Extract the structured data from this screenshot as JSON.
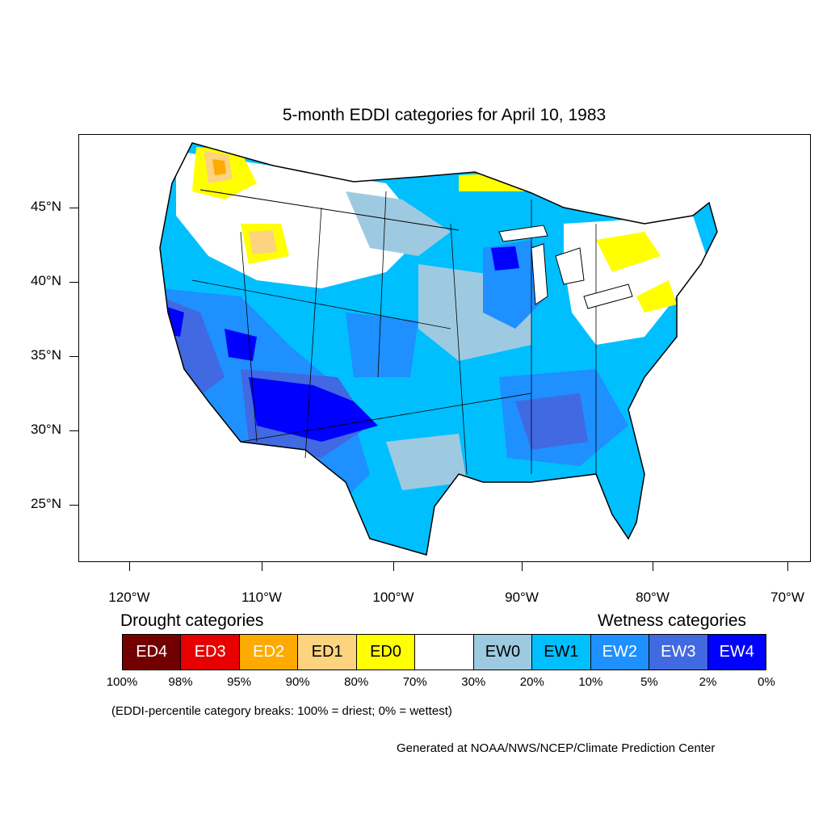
{
  "title": "5-month EDDI categories for April 10, 1983",
  "lat_labels": [
    "45°N",
    "40°N",
    "35°N",
    "30°N",
    "25°N"
  ],
  "lon_labels": [
    "120°W",
    "110°W",
    "100°W",
    "90°W",
    "80°W",
    "70°W"
  ],
  "legend": {
    "drought_heading": "Drought categories",
    "wetness_heading": "Wetness categories",
    "categories": [
      {
        "label": "ED4",
        "color": "#730000",
        "text_color": "#ffffff"
      },
      {
        "label": "ED3",
        "color": "#e60000",
        "text_color": "#ffffff"
      },
      {
        "label": "ED2",
        "color": "#ffaa00",
        "text_color": "#ffffff"
      },
      {
        "label": "ED1",
        "color": "#fcd37f",
        "text_color": "#000000"
      },
      {
        "label": "ED0",
        "color": "#ffff00",
        "text_color": "#000000"
      },
      {
        "label": "",
        "color": "#ffffff",
        "text_color": "#000000"
      },
      {
        "label": "EW0",
        "color": "#9ecae1",
        "text_color": "#000000"
      },
      {
        "label": "EW1",
        "color": "#00bfff",
        "text_color": "#000000"
      },
      {
        "label": "EW2",
        "color": "#1e90ff",
        "text_color": "#ffffff"
      },
      {
        "label": "EW3",
        "color": "#4169e1",
        "text_color": "#ffffff"
      },
      {
        "label": "EW4",
        "color": "#0000ff",
        "text_color": "#ffffff"
      }
    ],
    "breaks": [
      "100%",
      "98%",
      "95%",
      "90%",
      "80%",
      "70%",
      "30%",
      "20%",
      "10%",
      "5%",
      "2%",
      "0%"
    ]
  },
  "note": "(EDDI-percentile category breaks: 100% = driest; 0% = wettest)",
  "credit": "Generated at NOAA/NWS/NCEP/Climate Prediction Center"
}
